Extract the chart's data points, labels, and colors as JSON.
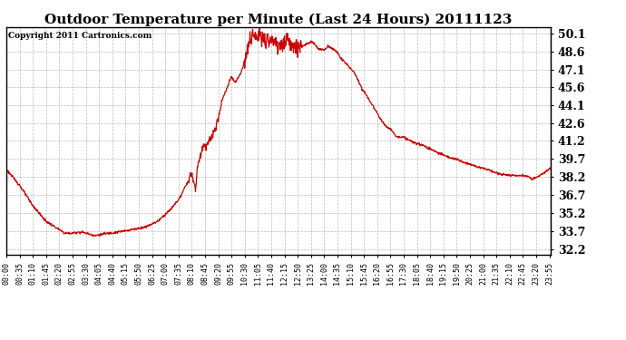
{
  "title": "Outdoor Temperature per Minute (Last 24 Hours) 20111123",
  "copyright_text": "Copyright 2011 Cartronics.com",
  "line_color": "#cc0000",
  "background_color": "#ffffff",
  "plot_bg_color": "#ffffff",
  "grid_color": "#aaaaaa",
  "yticks": [
    32.2,
    33.7,
    35.2,
    36.7,
    38.2,
    39.7,
    41.2,
    42.6,
    44.1,
    45.6,
    47.1,
    48.6,
    50.1
  ],
  "ylim": [
    31.7,
    50.6
  ],
  "temperature_profile": {
    "0": 38.8,
    "35": 37.5,
    "70": 35.8,
    "105": 34.5,
    "140": 33.8,
    "155": 33.5,
    "175": 33.5,
    "190": 33.6,
    "200": 33.6,
    "225": 33.4,
    "235": 33.3,
    "250": 33.4,
    "270": 33.5,
    "295": 33.6,
    "330": 33.8,
    "365": 34.0,
    "400": 34.5,
    "435": 35.5,
    "460": 36.5,
    "490": 38.5,
    "500": 37.0,
    "505": 39.0,
    "520": 40.8,
    "525": 40.8,
    "545": 41.5,
    "560": 43.0,
    "570": 44.5,
    "595": 46.5,
    "605": 46.0,
    "620": 46.8,
    "630": 47.8,
    "640": 49.0,
    "645": 49.5,
    "650": 50.0,
    "665": 49.5,
    "670": 50.0,
    "675": 49.5,
    "680": 49.8,
    "685": 49.3,
    "700": 49.8,
    "705": 49.5,
    "720": 49.0,
    "745": 49.6,
    "750": 49.3,
    "765": 49.0,
    "780": 49.0,
    "805": 49.4,
    "815": 49.2,
    "825": 48.8,
    "840": 48.7,
    "850": 49.0,
    "855": 49.0,
    "875": 48.5,
    "885": 48.0,
    "900": 47.5,
    "910": 47.2,
    "920": 46.8,
    "930": 46.2,
    "940": 45.5,
    "955": 44.8,
    "970": 44.0,
    "985": 43.2,
    "1000": 42.5,
    "1020": 42.0,
    "1030": 41.5,
    "1040": 41.5,
    "1050": 41.5,
    "1065": 41.2,
    "1080": 41.0,
    "1100": 40.8,
    "1120": 40.5,
    "1140": 40.2,
    "1155": 40.0,
    "1170": 39.8,
    "1185": 39.7,
    "1200": 39.5,
    "1215": 39.3,
    "1230": 39.2,
    "1245": 39.0,
    "1260": 38.9,
    "1270": 38.8,
    "1280": 38.7,
    "1295": 38.5,
    "1310": 38.4,
    "1325": 38.3,
    "1340": 38.3,
    "1355": 38.3,
    "1365": 38.3,
    "1380": 38.2,
    "1385": 38.1,
    "1390": 38.0,
    "1400": 38.1,
    "1410": 38.3,
    "1425": 38.6,
    "1439": 38.9
  }
}
